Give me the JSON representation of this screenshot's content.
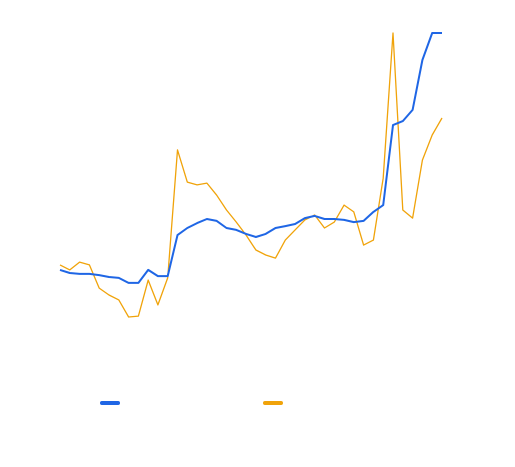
{
  "chart_data": {
    "type": "line",
    "categories": [
      null,
      null,
      null,
      null,
      null,
      null,
      null,
      null,
      null,
      null,
      null,
      null,
      null,
      null,
      null,
      null,
      null,
      null,
      null,
      null,
      null,
      null,
      null,
      null,
      null,
      null,
      null,
      null,
      null,
      null,
      null,
      null,
      null,
      null,
      null,
      null,
      null,
      null,
      null,
      null
    ],
    "ylim": [
      0,
      100
    ],
    "legend": "bottom",
    "series": [
      {
        "color": "#1f66e5",
        "values": [
          19.4,
          18.4,
          18.1,
          18.1,
          17.7,
          17.1,
          16.8,
          15.2,
          15.2,
          19.4,
          17.4,
          17.4,
          30.6,
          32.9,
          34.5,
          35.8,
          35.2,
          32.9,
          32.3,
          31.0,
          30.0,
          31.0,
          32.9,
          33.5,
          34.2,
          36.1,
          36.8,
          35.8,
          35.8,
          35.5,
          34.8,
          35.2,
          38.1,
          40.3,
          66.1,
          67.4,
          71.0,
          87.1,
          95.8,
          95.8
        ]
      },
      {
        "color": "#f0a30a",
        "values": [
          21.0,
          19.4,
          21.9,
          21.0,
          13.5,
          11.3,
          9.7,
          4.2,
          4.5,
          16.1,
          8.1,
          16.8,
          58.1,
          47.7,
          46.8,
          47.4,
          43.5,
          38.7,
          34.8,
          30.6,
          25.8,
          24.2,
          23.2,
          29.0,
          32.3,
          35.5,
          37.1,
          32.9,
          34.8,
          40.3,
          38.1,
          27.4,
          29.0,
          49.0,
          95.8,
          38.7,
          36.1,
          54.8,
          62.9,
          68.4
        ]
      }
    ]
  }
}
